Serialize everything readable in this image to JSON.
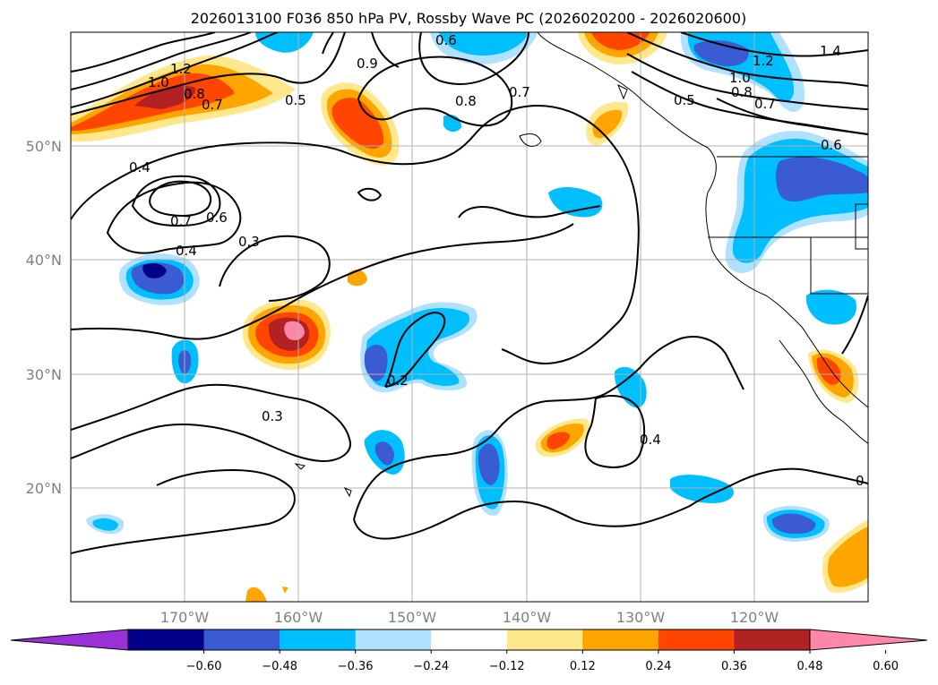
{
  "title": "2026013100 F036 850 hPa PV, Rossby Wave PC (2026020200 - 2026020600)",
  "map": {
    "region": "North-east Pacific and western North America",
    "lon_range": [
      -180,
      -110
    ],
    "lat_range": [
      10,
      60
    ],
    "lat_ticks": [
      {
        "value": 50,
        "label": "50°N"
      },
      {
        "value": 40,
        "label": "40°N"
      },
      {
        "value": 30,
        "label": "30°N"
      },
      {
        "value": 20,
        "label": "20°N"
      }
    ],
    "lon_ticks": [
      {
        "value": -170,
        "label": "170°W"
      },
      {
        "value": -160,
        "label": "160°W"
      },
      {
        "value": -150,
        "label": "150°W"
      },
      {
        "value": -140,
        "label": "140°W"
      },
      {
        "value": -130,
        "label": "130°W"
      },
      {
        "value": -120,
        "label": "120°W"
      }
    ],
    "contour_labels": [
      "1.2",
      "1.0",
      "0.8",
      "0.7",
      "0.5",
      "0.6",
      "0.9",
      "0.8",
      "0.7",
      "1.4",
      "1.2",
      "1.0",
      "0.8",
      "0.7",
      "0.5",
      "0.6",
      "0.4",
      "0.7",
      "0.6",
      "0.4",
      "0.3",
      "0.2",
      "0.3",
      "0.4",
      "0"
    ]
  },
  "colorbar": {
    "ticks": [
      "−0.60",
      "−0.48",
      "−0.36",
      "−0.24",
      "−0.12",
      "0.12",
      "0.24",
      "0.36",
      "0.48",
      "0.60"
    ],
    "colors": [
      "#9b30d9",
      "#00008b",
      "#3a5bd1",
      "#00bfff",
      "#b0e2ff",
      "#ffffff",
      "#ffe88c",
      "#ffa500",
      "#ff4500",
      "#b22222",
      "#ff88aa"
    ]
  }
}
